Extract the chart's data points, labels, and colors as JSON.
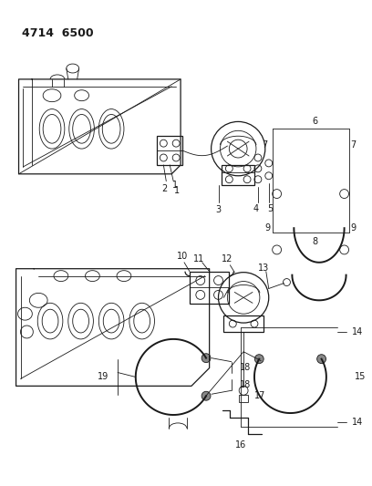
{
  "title": "4714  6500",
  "bg_color": "#ffffff",
  "line_color": "#1a1a1a",
  "title_fontsize": 9,
  "label_fontsize": 7,
  "fig_width": 4.08,
  "fig_height": 5.33,
  "dpi": 100
}
